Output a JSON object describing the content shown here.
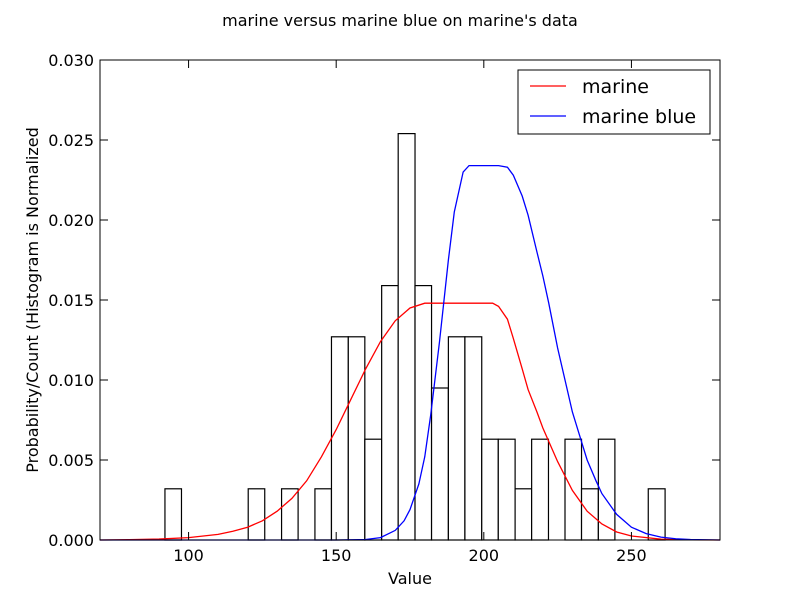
{
  "chart_data": {
    "type": "histogram-with-curves",
    "title": "marine versus marine blue on marine's data",
    "xlabel": "Value",
    "ylabel": "Probability/Count (Histogram is Normalized",
    "xlim": [
      70,
      280
    ],
    "ylim": [
      0,
      0.03
    ],
    "x_ticks": [
      100,
      150,
      200,
      250
    ],
    "x_tick_labels": [
      "100",
      "150",
      "200",
      "250"
    ],
    "y_ticks": [
      0,
      0.005,
      0.01,
      0.015,
      0.02,
      0.025,
      0.03
    ],
    "y_tick_labels": [
      "0.000",
      "0.005",
      "0.010",
      "0.015",
      "0.020",
      "0.025",
      "0.030"
    ],
    "grid": false,
    "legend_position": "top-right",
    "histogram": {
      "edge_color": "#000000",
      "fill_color": "#ffffff",
      "bins": [
        {
          "x0": 92.0,
          "x1": 97.6,
          "density": 0.0032
        },
        {
          "x0": 120.2,
          "x1": 125.8,
          "density": 0.0032
        },
        {
          "x0": 131.5,
          "x1": 137.1,
          "density": 0.0032
        },
        {
          "x0": 142.8,
          "x1": 148.4,
          "density": 0.0032
        },
        {
          "x0": 148.4,
          "x1": 154.1,
          "density": 0.0127
        },
        {
          "x0": 154.1,
          "x1": 159.7,
          "density": 0.0127
        },
        {
          "x0": 159.7,
          "x1": 165.4,
          "density": 0.0063
        },
        {
          "x0": 165.4,
          "x1": 171.0,
          "density": 0.0159
        },
        {
          "x0": 171.0,
          "x1": 176.7,
          "density": 0.0254
        },
        {
          "x0": 176.7,
          "x1": 182.3,
          "density": 0.0159
        },
        {
          "x0": 182.3,
          "x1": 188.0,
          "density": 0.0095
        },
        {
          "x0": 188.0,
          "x1": 193.6,
          "density": 0.0127
        },
        {
          "x0": 193.6,
          "x1": 199.3,
          "density": 0.0127
        },
        {
          "x0": 199.3,
          "x1": 204.9,
          "density": 0.0063
        },
        {
          "x0": 204.9,
          "x1": 210.6,
          "density": 0.0063
        },
        {
          "x0": 210.6,
          "x1": 216.2,
          "density": 0.0032
        },
        {
          "x0": 216.2,
          "x1": 221.9,
          "density": 0.0063
        },
        {
          "x0": 227.5,
          "x1": 233.1,
          "density": 0.0063
        },
        {
          "x0": 233.1,
          "x1": 238.8,
          "density": 0.0032
        },
        {
          "x0": 238.8,
          "x1": 244.4,
          "density": 0.0063
        },
        {
          "x0": 255.7,
          "x1": 261.4,
          "density": 0.0032
        }
      ]
    },
    "series": [
      {
        "name": "marine",
        "color": "#ff0000",
        "x": [
          70,
          80,
          90,
          100,
          110,
          115,
          120,
          125,
          130,
          135,
          140,
          145,
          150,
          155,
          160,
          165,
          170,
          175,
          180,
          185,
          190,
          195,
          200,
          203,
          205,
          208,
          210,
          213,
          215,
          218,
          220,
          225,
          230,
          235,
          240,
          245,
          250,
          260,
          270,
          280
        ],
        "y": [
          0.0,
          2e-05,
          6e-05,
          0.00015,
          0.00035,
          0.00055,
          0.0008,
          0.0012,
          0.0018,
          0.0026,
          0.0037,
          0.0052,
          0.0069,
          0.0088,
          0.0107,
          0.0124,
          0.0137,
          0.0145,
          0.0148,
          0.0148,
          0.0148,
          0.0148,
          0.0148,
          0.0148,
          0.0146,
          0.0138,
          0.0126,
          0.0107,
          0.0094,
          0.008,
          0.007,
          0.0049,
          0.0031,
          0.0018,
          0.001,
          0.0005,
          0.00025,
          5e-05,
          1e-05,
          0.0
        ]
      },
      {
        "name": "marine blue",
        "color": "#0000ff",
        "x": [
          70,
          150,
          160,
          165,
          170,
          173,
          175,
          178,
          180,
          182,
          185,
          188,
          190,
          193,
          195,
          200,
          205,
          208,
          210,
          213,
          215,
          218,
          220,
          222,
          225,
          228,
          230,
          233,
          235,
          238,
          240,
          245,
          250,
          255,
          260,
          265,
          270,
          280
        ],
        "y": [
          0.0,
          0.0,
          3e-05,
          0.00015,
          0.0006,
          0.0012,
          0.0019,
          0.0035,
          0.0052,
          0.0078,
          0.0124,
          0.0175,
          0.0205,
          0.023,
          0.0234,
          0.0234,
          0.0234,
          0.0233,
          0.0228,
          0.0215,
          0.0203,
          0.018,
          0.0165,
          0.0148,
          0.012,
          0.0096,
          0.008,
          0.0062,
          0.005,
          0.0037,
          0.0029,
          0.0016,
          0.0008,
          0.0004,
          0.00018,
          8e-05,
          3e-05,
          0.0
        ]
      }
    ]
  }
}
